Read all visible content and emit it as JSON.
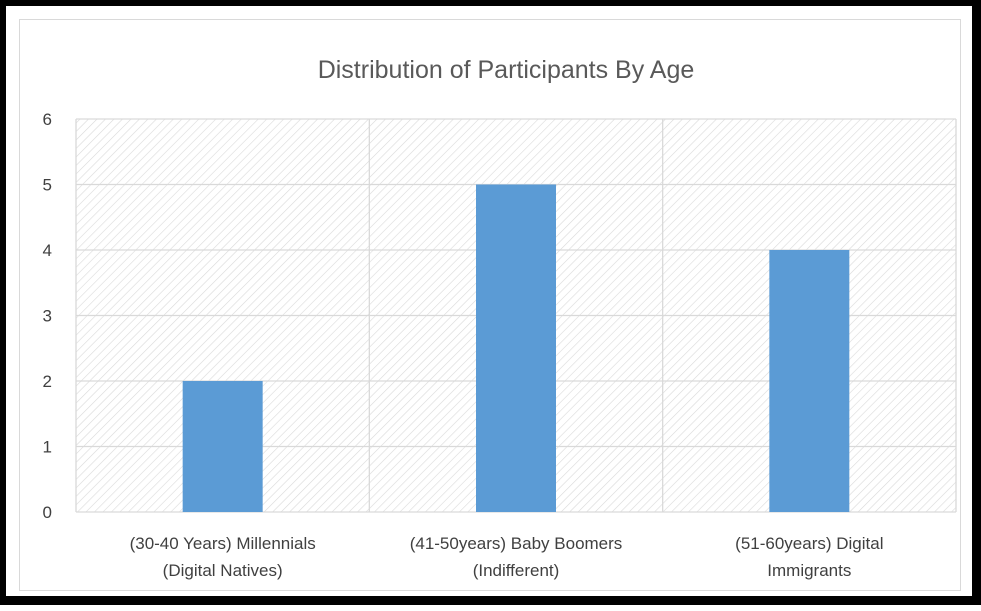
{
  "chart_data": {
    "type": "bar",
    "title": "Distribution of Participants By Age",
    "categories": [
      [
        "(30-40 Years) Millennials",
        "(Digital Natives)"
      ],
      [
        "(41-50years) Baby Boomers",
        "(Indifferent)"
      ],
      [
        "(51-60years) Digital",
        "Immigrants"
      ]
    ],
    "values": [
      2,
      5,
      4
    ],
    "xlabel": "",
    "ylabel": "",
    "ylim": [
      0,
      6
    ],
    "yticks": [
      "0",
      "1",
      "2",
      "3",
      "4",
      "5",
      "6"
    ],
    "grid": true,
    "legend": "none",
    "bar_color": "#5b9bd5",
    "plot_pattern": "diagonal-hatch"
  }
}
